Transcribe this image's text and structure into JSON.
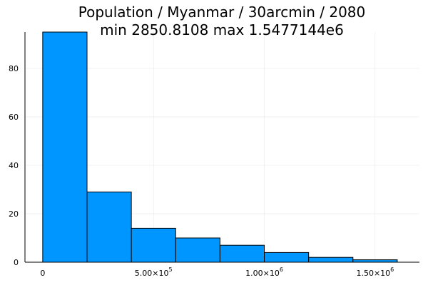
{
  "chart_data": {
    "type": "bar",
    "title": "Population / Myanmar / 30arcmin / 2080",
    "subtitle": "min 2850.8108  max 1.5477144e6",
    "bin_edges": [
      0,
      200000,
      400000,
      600000,
      800000,
      1000000,
      1200000,
      1400000,
      1600000
    ],
    "values": [
      95,
      29,
      14,
      10,
      7,
      4,
      2,
      1
    ],
    "xlim": [
      -80000,
      1700000
    ],
    "ylim": [
      0,
      95
    ],
    "x_ticks": [
      {
        "value": 0,
        "mantissa": "0",
        "exp": ""
      },
      {
        "value": 500000,
        "mantissa": "5.00×10",
        "exp": "5"
      },
      {
        "value": 1000000,
        "mantissa": "1.00×10",
        "exp": "6"
      },
      {
        "value": 1500000,
        "mantissa": "1.50×10",
        "exp": "6"
      }
    ],
    "y_ticks": [
      0,
      20,
      40,
      60,
      80
    ],
    "grid": true,
    "legend": "none",
    "bar_color": "#0096FF"
  }
}
